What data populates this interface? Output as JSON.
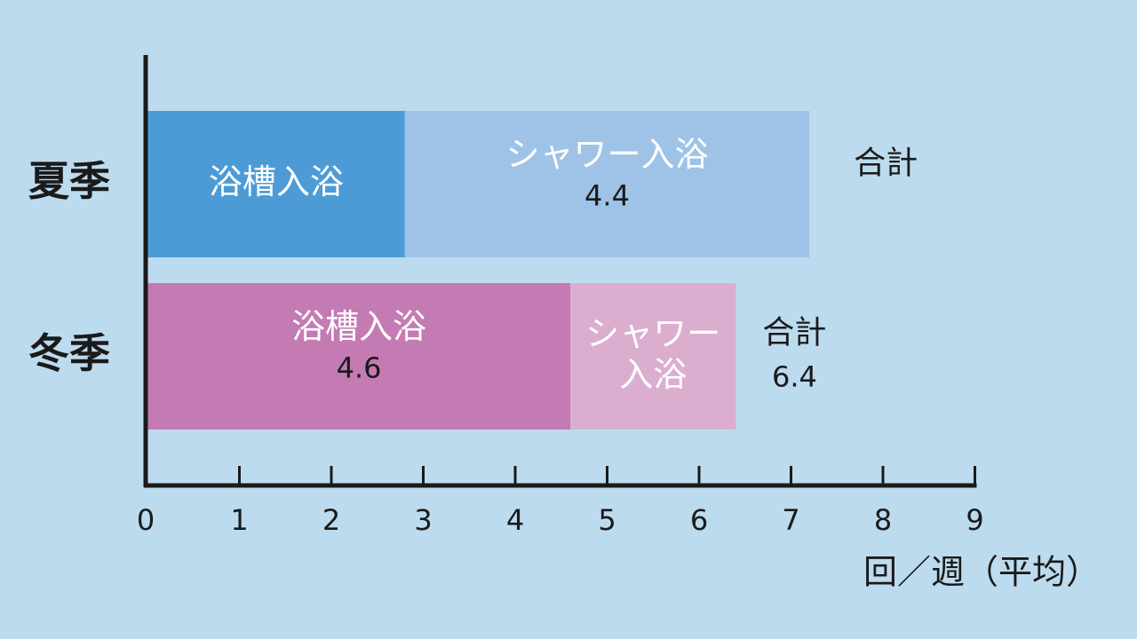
{
  "chart_data": {
    "type": "bar",
    "orientation": "horizontal",
    "stacked": true,
    "categories": [
      "夏季",
      "冬季"
    ],
    "series": [
      {
        "name": "浴槽入浴",
        "values": [
          2.8,
          4.6
        ],
        "colors": [
          "#4d9bd6",
          "#c47ab3"
        ],
        "labels": [
          "",
          "4.6"
        ]
      },
      {
        "name": "シャワー入浴",
        "values": [
          4.4,
          1.8
        ],
        "colors": [
          "#9fc3e6",
          "#dbaed0"
        ],
        "labels": [
          "4.4",
          ""
        ]
      }
    ],
    "total_label": "合計",
    "totals": [
      7.2,
      6.4
    ],
    "total_value_labels": [
      "",
      "6.4"
    ],
    "xlim": [
      0,
      9
    ],
    "xticks": [
      0,
      1,
      2,
      3,
      4,
      5,
      6,
      7,
      8,
      9
    ],
    "xlabel": "回／週（平均）",
    "grid": false,
    "legend": "none"
  }
}
